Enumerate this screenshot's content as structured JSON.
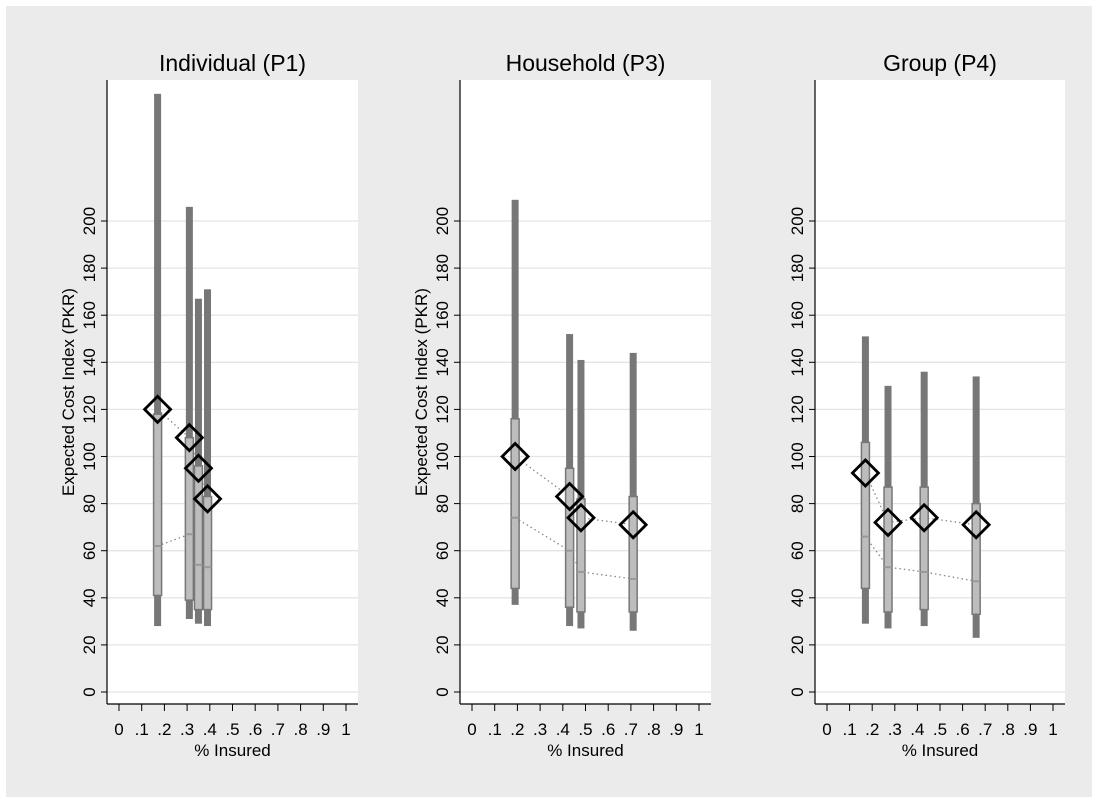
{
  "colors": {
    "background": "#ebebeb",
    "plot_background": "#ffffff",
    "grid": "#e4e4e4",
    "range_bar": "#777777",
    "iqr_bar": "#bdbdbd",
    "median_line": "#999999",
    "marker_stroke": "#000000",
    "dotted_line": "#888888"
  },
  "chart_data": [
    {
      "type": "box-range",
      "title": "Individual (P1)",
      "xlabel": "% Insured",
      "ylabel": "Expected Cost Index (PKR)",
      "xlim": [
        -0.05,
        1.05
      ],
      "ylim": [
        -5,
        255
      ],
      "xticks": [
        "0",
        ".1",
        ".2",
        ".3",
        ".4",
        ".5",
        ".6",
        ".7",
        ".8",
        ".9",
        "1"
      ],
      "yticks": [
        "0",
        "20",
        "40",
        "60",
        "80",
        "100",
        "120",
        "140",
        "160",
        "180",
        "200"
      ],
      "grid": true,
      "points": [
        {
          "x": 0.17,
          "min": 28,
          "q1": 41,
          "median": 62,
          "q3": 118,
          "max": 254,
          "mean": 120
        },
        {
          "x": 0.31,
          "min": 31,
          "q1": 39,
          "median": 67,
          "q3": 108,
          "max": 206,
          "mean": 108
        },
        {
          "x": 0.35,
          "min": 29,
          "q1": 35,
          "median": 54,
          "q3": 96,
          "max": 167,
          "mean": 95
        },
        {
          "x": 0.39,
          "min": 28,
          "q1": 35,
          "median": 53,
          "q3": 83,
          "max": 171,
          "mean": 82
        }
      ]
    },
    {
      "type": "box-range",
      "title": "Household (P3)",
      "xlabel": "% Insured",
      "ylabel": "Expected Cost Index (PKR)",
      "xlim": [
        -0.05,
        1.05
      ],
      "ylim": [
        -5,
        255
      ],
      "xticks": [
        "0",
        ".1",
        ".2",
        ".3",
        ".4",
        ".5",
        ".6",
        ".7",
        ".8",
        ".9",
        "1"
      ],
      "yticks": [
        "0",
        "20",
        "40",
        "60",
        "80",
        "100",
        "120",
        "140",
        "160",
        "180",
        "200"
      ],
      "grid": true,
      "points": [
        {
          "x": 0.19,
          "min": 37,
          "q1": 44,
          "median": 74,
          "q3": 116,
          "max": 209,
          "mean": 100
        },
        {
          "x": 0.43,
          "min": 28,
          "q1": 36,
          "median": 60,
          "q3": 95,
          "max": 152,
          "mean": 83
        },
        {
          "x": 0.48,
          "min": 27,
          "q1": 34,
          "median": 51,
          "q3": 82,
          "max": 141,
          "mean": 74
        },
        {
          "x": 0.71,
          "min": 26,
          "q1": 34,
          "median": 48,
          "q3": 83,
          "max": 144,
          "mean": 71
        }
      ]
    },
    {
      "type": "box-range",
      "title": "Group (P4)",
      "xlabel": "% Insured",
      "ylabel": "",
      "xlim": [
        -0.05,
        1.05
      ],
      "ylim": [
        -5,
        255
      ],
      "xticks": [
        "0",
        ".1",
        ".2",
        ".3",
        ".4",
        ".5",
        ".6",
        ".7",
        ".8",
        ".9",
        "1"
      ],
      "yticks": [
        "0",
        "20",
        "40",
        "60",
        "80",
        "100",
        "120",
        "140",
        "160",
        "180",
        "200"
      ],
      "grid": true,
      "points": [
        {
          "x": 0.17,
          "min": 29,
          "q1": 44,
          "median": 66,
          "q3": 106,
          "max": 151,
          "mean": 93
        },
        {
          "x": 0.27,
          "min": 27,
          "q1": 34,
          "median": 53,
          "q3": 87,
          "max": 130,
          "mean": 72
        },
        {
          "x": 0.43,
          "min": 28,
          "q1": 35,
          "median": 51,
          "q3": 87,
          "max": 136,
          "mean": 74
        },
        {
          "x": 0.66,
          "min": 23,
          "q1": 33,
          "median": 47,
          "q3": 80,
          "max": 134,
          "mean": 71
        }
      ]
    }
  ]
}
